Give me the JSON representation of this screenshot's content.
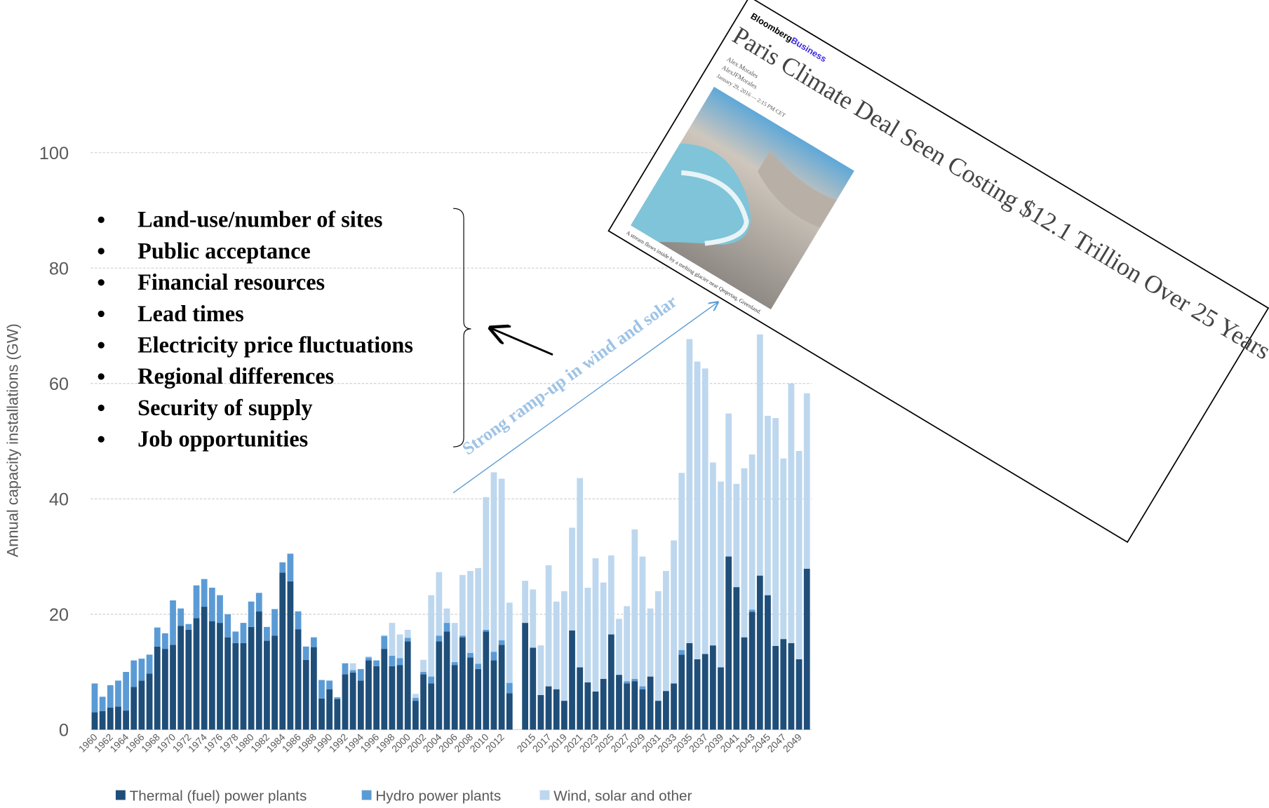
{
  "chart_data": {
    "type": "bar",
    "stacked": true,
    "y_label": "Annual capacity installations (GW)",
    "ylim": [
      0,
      100
    ],
    "yticks": [
      0,
      20,
      40,
      60,
      80,
      100
    ],
    "grid": true,
    "legend": "bottom",
    "categories": [
      "1960",
      null,
      "1962",
      null,
      "1964",
      null,
      "1966",
      null,
      "1968",
      null,
      "1970",
      null,
      "1972",
      null,
      "1974",
      null,
      "1976",
      null,
      "1978",
      null,
      "1980",
      null,
      "1982",
      null,
      "1984",
      null,
      "1986",
      null,
      "1988",
      null,
      "1990",
      null,
      "1992",
      null,
      "1994",
      null,
      "1996",
      null,
      "1998",
      null,
      "2000",
      null,
      "2002",
      null,
      "2004",
      null,
      "2006",
      null,
      "2008",
      null,
      "2010",
      null,
      "2012",
      null,
      null,
      null,
      "2015",
      null,
      "2017",
      null,
      "2019",
      null,
      "2021",
      null,
      "2023",
      null,
      "2025",
      null,
      "2027",
      null,
      "2029",
      null,
      "2031",
      null,
      "2033",
      null,
      "2035",
      null,
      "2037",
      null,
      "2039",
      null,
      "2041",
      null,
      "2043",
      null,
      "2045",
      null,
      "2047",
      null,
      "2049",
      null
    ],
    "series": [
      {
        "name": "Thermal (fuel) power plants",
        "color": "#1f4e79",
        "values": [
          3,
          3.2,
          3.8,
          4,
          3.3,
          7.4,
          8.5,
          9.7,
          14.4,
          14,
          14.7,
          18,
          17.3,
          19.3,
          21.3,
          18.8,
          18.5,
          16,
          15,
          15,
          17.8,
          20.5,
          15.4,
          16.3,
          27.2,
          25.7,
          17.4,
          12.1,
          14.3,
          5.4,
          7,
          5.3,
          9.6,
          9.9,
          8.5,
          12,
          11,
          14,
          11,
          11.2,
          15.3,
          5,
          9.6,
          8,
          15.3,
          17,
          11.2,
          16,
          12.5,
          10.5,
          17,
          12,
          14.7,
          6.3,
          null,
          18.5,
          14.2,
          6,
          7.5,
          7,
          5,
          17.2,
          10.8,
          8.2,
          6.6,
          8.8,
          16.5,
          9.5,
          8,
          8.4,
          7,
          9.2,
          5,
          6.7,
          8,
          13,
          15,
          12.2,
          13.1,
          14.6,
          10.8,
          30,
          24.7,
          16,
          20.4,
          26.7,
          23.3,
          14.5,
          15.7,
          15,
          12.2,
          27.9
        ]
      },
      {
        "name": "Hydro power plants",
        "color": "#5b9bd5",
        "values": [
          5,
          2.5,
          3.9,
          4.5,
          6.7,
          4.6,
          3.8,
          3.3,
          3.3,
          2.7,
          7.7,
          3,
          1,
          5.7,
          4.8,
          5.8,
          4.8,
          4,
          2,
          3.5,
          4.4,
          3.2,
          2.4,
          4.6,
          1.8,
          4.8,
          3.1,
          2.3,
          1.7,
          3.2,
          1.5,
          0.3,
          1.9,
          0.4,
          2,
          0.5,
          1,
          2.2,
          1.8,
          1.2,
          0.6,
          0.5,
          0.4,
          1.2,
          1,
          1.5,
          0.5,
          0.3,
          0.8,
          0.9,
          0.3,
          1.5,
          0.8,
          1.8,
          null,
          0,
          0,
          0,
          0,
          0,
          0,
          0,
          0,
          0,
          0,
          0,
          0,
          0,
          0.4,
          0.4,
          0.5,
          0,
          0,
          0,
          0,
          0.8,
          0,
          0,
          0,
          0,
          0,
          0,
          0,
          0,
          0.4,
          0,
          0,
          0,
          0,
          0,
          0,
          0
        ]
      },
      {
        "name": "Wind, solar and other",
        "color": "#bdd7ee",
        "values": [
          0,
          0,
          0,
          0,
          0,
          0,
          0,
          0,
          0,
          0,
          0,
          0,
          0,
          0,
          0,
          0,
          0,
          0,
          0,
          0,
          0,
          0,
          0,
          0,
          0,
          0,
          0,
          0,
          0,
          0,
          0,
          0,
          0,
          1.2,
          0,
          0.2,
          0,
          0.2,
          5.7,
          4.1,
          1.4,
          0.7,
          2.1,
          14.1,
          11,
          2.5,
          6.8,
          10.5,
          14.2,
          16.6,
          23,
          31.1,
          28,
          13.9,
          null,
          7.3,
          10.1,
          8.6,
          21,
          15.2,
          19,
          17.8,
          32.8,
          16.4,
          23.1,
          16.7,
          13.7,
          9.7,
          13,
          25.9,
          22.5,
          11.8,
          19,
          20.8,
          24.8,
          30.7,
          52.7,
          51.6,
          49.5,
          31.7,
          32.2,
          24.8,
          17.9,
          29.3,
          26.9,
          41.8,
          31.1,
          39.5,
          31.3,
          45,
          36.1,
          30.4
        ]
      }
    ],
    "bullets": [
      "Land-use/number of sites",
      "Public acceptance",
      "Financial resources",
      "Lead times",
      "Electricity price fluctuations",
      "Regional differences",
      "Security of supply",
      "Job opportunities"
    ],
    "annotation": "Strong ramp-up in wind and solar",
    "article": {
      "brand": "Bloomberg",
      "brand_suffix": "Business",
      "title": "Paris Climate Deal Seen Costing $12.1 Trillion Over 25 Years",
      "author": "Alex Morales",
      "handle": "AlexJFMorales",
      "date": "January 29, 2016 — 2:15 PM CET",
      "caption": "A stream flows inside by a melting glacier near Qeqertaq, Greenland."
    }
  }
}
